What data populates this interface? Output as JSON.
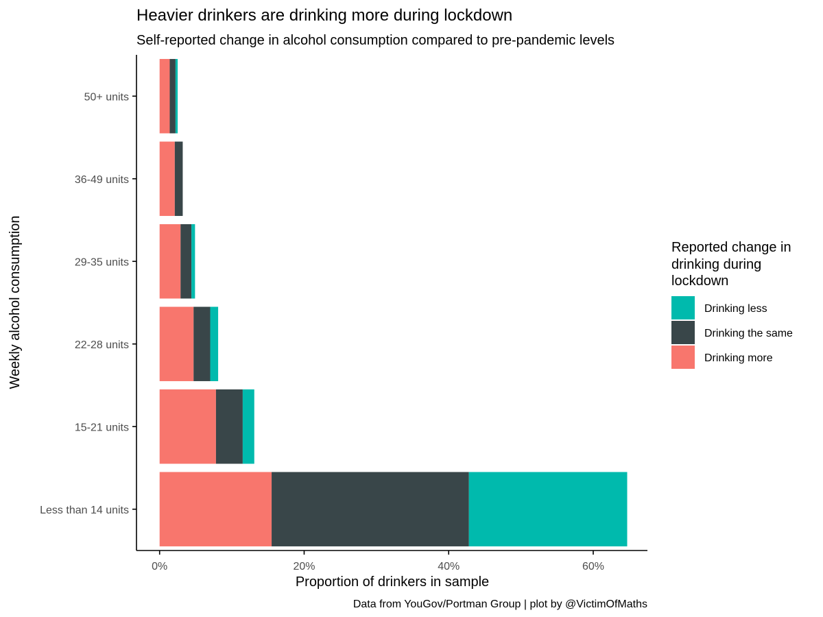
{
  "chart_data": {
    "type": "bar",
    "orientation": "horizontal",
    "stacked": true,
    "title": "Heavier drinkers are drinking more during lockdown",
    "subtitle": "Self-reported change in alcohol consumption compared to pre-pandemic levels",
    "xlabel": "Proportion of drinkers in sample",
    "ylabel": "Weekly alcohol consumption",
    "caption": "Data from YouGov/Portman Group | plot by @VictimOfMaths",
    "xlim": [
      -0.032,
      0.675
    ],
    "x_ticks": [
      0,
      0.2,
      0.4,
      0.6
    ],
    "x_tick_labels": [
      "0%",
      "20%",
      "40%",
      "60%"
    ],
    "categories": [
      "Less than 14 units",
      "15-21 units",
      "22-28 units",
      "29-35 units",
      "36-49 units",
      "50+ units"
    ],
    "series": [
      {
        "name": "Drinking more",
        "color": "#F8766D",
        "values": [
          0.155,
          0.078,
          0.047,
          0.029,
          0.021,
          0.014
        ]
      },
      {
        "name": "Drinking the same",
        "color": "#394649",
        "values": [
          0.273,
          0.037,
          0.023,
          0.015,
          0.011,
          0.008
        ]
      },
      {
        "name": "Drinking less",
        "color": "#00BAAD",
        "values": [
          0.219,
          0.016,
          0.011,
          0.005,
          0.0,
          0.003
        ]
      }
    ],
    "grid": false,
    "legend": {
      "title_lines": [
        "Reported change in",
        "drinking during",
        "lockdown"
      ],
      "position": "right",
      "entries": [
        {
          "label": "Drinking less",
          "color": "#00BAAD"
        },
        {
          "label": "Drinking the same",
          "color": "#394649"
        },
        {
          "label": "Drinking more",
          "color": "#F8766D"
        }
      ]
    }
  }
}
